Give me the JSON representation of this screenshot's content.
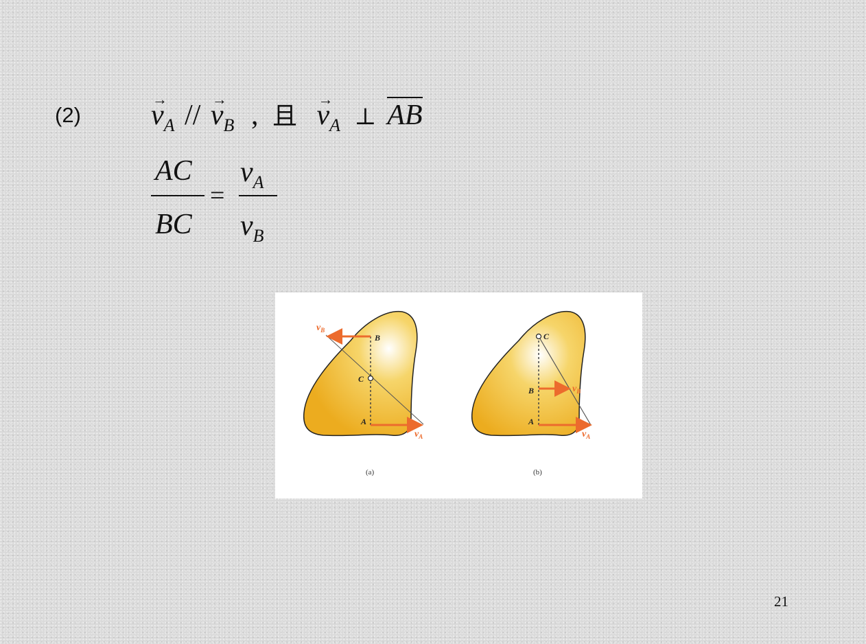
{
  "item_number": "(2)",
  "line1": {
    "v": "v",
    "arrow": "→",
    "sub_a": "A",
    "sub_b": "B",
    "parallel": "//",
    "comma": ",",
    "and_char": "且",
    "perp": "⊥",
    "segment": "AB"
  },
  "ratio": {
    "numerator_left": "AC",
    "denominator_left": "BC",
    "equals": "=",
    "numerator_right_v": "v",
    "numerator_right_sub": "A",
    "denominator_right_v": "v",
    "denominator_right_sub": "B"
  },
  "figure": {
    "a": {
      "caption": "(a)",
      "label_b": "B",
      "label_c": "C",
      "label_a": "A",
      "vel_b": "v",
      "vel_b_sub": "B",
      "vel_a": "v",
      "vel_a_sub": "A"
    },
    "b": {
      "caption": "(b)",
      "label_c": "C",
      "label_b": "B",
      "label_a": "A",
      "vel_b": "v",
      "vel_b_sub": "B",
      "vel_a": "v",
      "vel_a_sub": "A"
    },
    "colors": {
      "body": "#f2b82e",
      "arrow": "#ec6b2d"
    }
  },
  "page_number": "21"
}
